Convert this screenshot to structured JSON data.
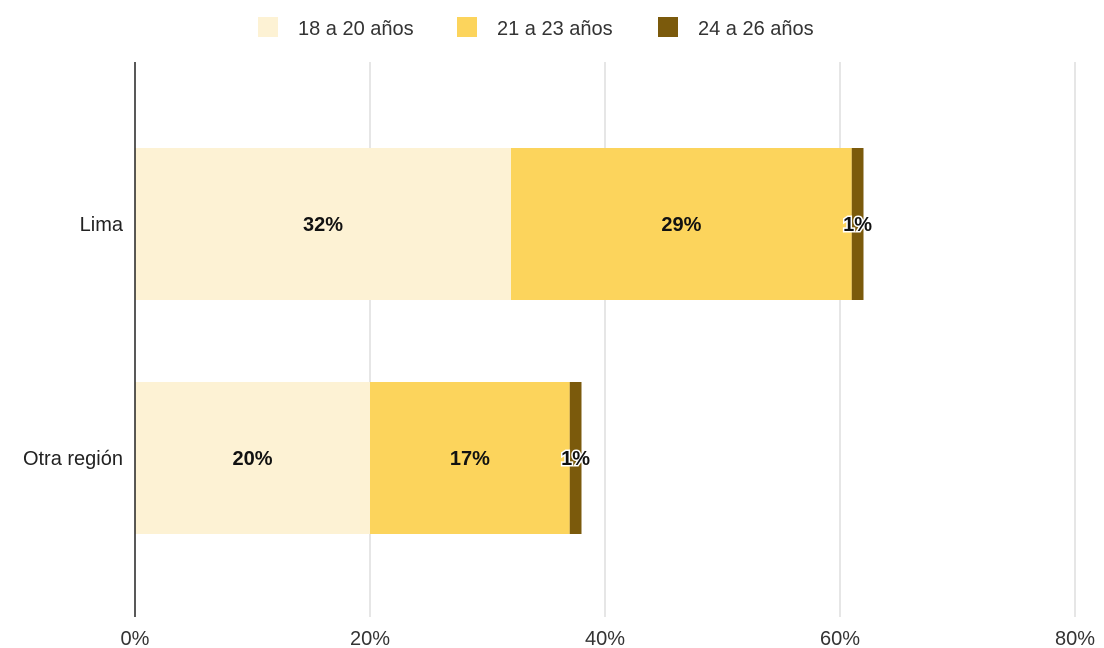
{
  "chart_data": {
    "type": "bar",
    "orientation": "horizontal",
    "stacked": true,
    "categories": [
      "Lima",
      "Otra región"
    ],
    "series": [
      {
        "name": "18 a 20 años",
        "values": [
          32,
          20
        ],
        "labels": [
          "32%",
          "20%"
        ],
        "color": "#fdf2d4"
      },
      {
        "name": "21 a 23 años",
        "values": [
          29,
          17
        ],
        "labels": [
          "29%",
          "17%"
        ],
        "color": "#fcd45c"
      },
      {
        "name": "24 a 26 años",
        "values": [
          1,
          1
        ],
        "labels": [
          "1%",
          "1%"
        ],
        "color": "#7b5a0c"
      }
    ],
    "xlim": [
      0,
      80
    ],
    "xticks": [
      0,
      20,
      40,
      60,
      80
    ],
    "xtick_labels": [
      "0%",
      "20%",
      "40%",
      "60%",
      "80%"
    ],
    "grid": true,
    "legend": "top"
  }
}
